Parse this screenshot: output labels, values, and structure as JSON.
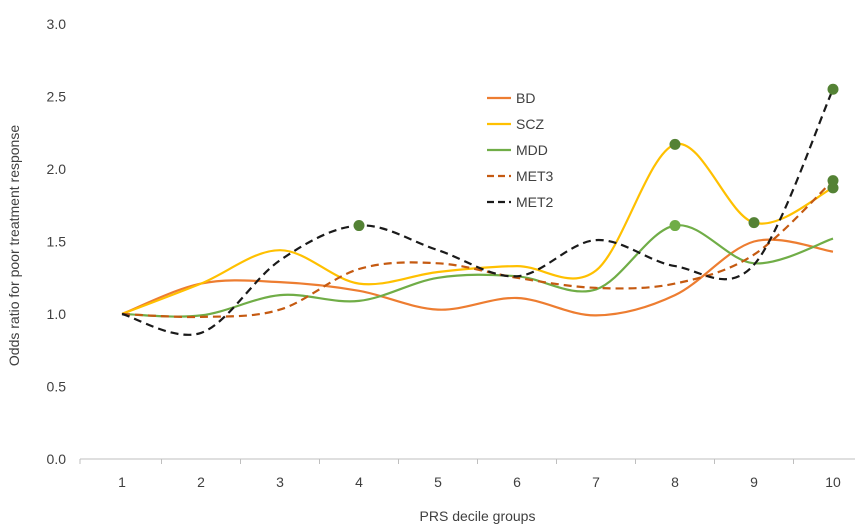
{
  "chart_data": {
    "type": "line",
    "title": "",
    "xlabel": "PRS decile groups",
    "ylabel": "Odds ratio for poor treatment response",
    "x": [
      1,
      2,
      3,
      4,
      5,
      6,
      7,
      8,
      9,
      10
    ],
    "xtick_labels": [
      "1",
      "2",
      "3",
      "4",
      "5",
      "6",
      "7",
      "8",
      "9",
      "10"
    ],
    "ylim": [
      0,
      3
    ],
    "yticks": [
      0.0,
      0.5,
      1.0,
      1.5,
      2.0,
      2.5,
      3.0
    ],
    "ytick_labels": [
      "0.0",
      "0.5",
      "1.0",
      "1.5",
      "2.0",
      "2.5",
      "3.0"
    ],
    "grid": false,
    "legend_position": "upper-center",
    "series": [
      {
        "name": "BD",
        "color": "#ED7D31",
        "dash": "solid",
        "values": [
          1.0,
          1.21,
          1.22,
          1.16,
          1.03,
          1.11,
          0.99,
          1.13,
          1.5,
          1.43
        ],
        "significant": []
      },
      {
        "name": "SCZ",
        "color": "#FFC000",
        "dash": "solid",
        "values": [
          1.0,
          1.21,
          1.44,
          1.21,
          1.29,
          1.33,
          1.3,
          2.17,
          1.63,
          1.87
        ],
        "significant": [
          8,
          9,
          10
        ]
      },
      {
        "name": "MDD",
        "color": "#70AD47",
        "dash": "solid",
        "values": [
          1.0,
          0.99,
          1.13,
          1.09,
          1.25,
          1.26,
          1.17,
          1.61,
          1.35,
          1.52
        ],
        "significant": [
          8
        ]
      },
      {
        "name": "MET3",
        "color": "#C55A11",
        "dash": "dashed",
        "values": [
          1.0,
          0.98,
          1.03,
          1.31,
          1.35,
          1.25,
          1.18,
          1.21,
          1.41,
          1.92
        ],
        "significant": [
          10
        ]
      },
      {
        "name": "MET2",
        "color": "#1A1A1A",
        "dash": "dashed",
        "values": [
          1.0,
          0.87,
          1.37,
          1.61,
          1.44,
          1.26,
          1.51,
          1.33,
          1.34,
          2.55
        ],
        "significant": [
          4,
          10
        ]
      }
    ],
    "marker_colors": {
      "dark": "#548235",
      "light": "#70AD47"
    }
  }
}
